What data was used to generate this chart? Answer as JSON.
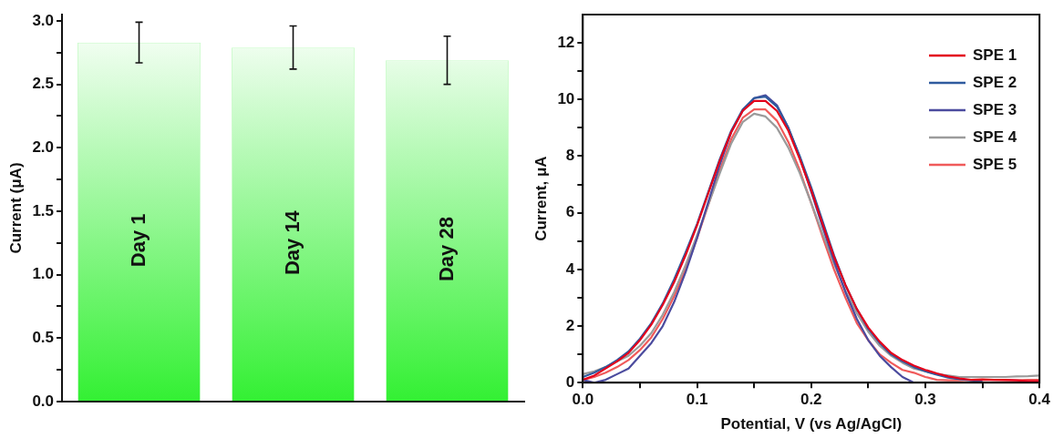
{
  "chart_data": [
    {
      "type": "bar",
      "ylabel": "Current (μA)",
      "categories": [
        "Day 1",
        "Day 14",
        "Day 28"
      ],
      "series": [
        {
          "color": "#33f033",
          "values": [
            2.83,
            2.79,
            2.69
          ],
          "errors": [
            0.16,
            0.17,
            0.19
          ]
        }
      ],
      "ylim": [
        0,
        3.05
      ],
      "yticks": [
        {
          "value": 0,
          "label": "0.0"
        },
        {
          "value": 0.25,
          "label": null
        },
        {
          "value": 0.5,
          "label": "0.5"
        },
        {
          "value": 0.75,
          "label": null
        },
        {
          "value": 1,
          "label": "1.0"
        },
        {
          "value": 1.25,
          "label": null
        },
        {
          "value": 1.5,
          "label": "1.5"
        },
        {
          "value": 1.75,
          "label": null
        },
        {
          "value": 2,
          "label": "2.0"
        },
        {
          "value": 2.25,
          "label": null
        },
        {
          "value": 2.5,
          "label": "2.5"
        },
        {
          "value": 2.75,
          "label": null
        },
        {
          "value": 3,
          "label": "3.0"
        }
      ],
      "grid": false,
      "legend": false
    },
    {
      "type": "line",
      "xlabel": "Potential, V (vs Ag/AgCl)",
      "ylabel": "Current, μA",
      "x": [
        0,
        0.01,
        0.02,
        0.03,
        0.04,
        0.05,
        0.06,
        0.07,
        0.08,
        0.09,
        0.1,
        0.11,
        0.12,
        0.13,
        0.14,
        0.15,
        0.16,
        0.17,
        0.18,
        0.19,
        0.2,
        0.21,
        0.22,
        0.23,
        0.24,
        0.25,
        0.26,
        0.27,
        0.28,
        0.29,
        0.3,
        0.31,
        0.32,
        0.33,
        0.34,
        0.35,
        0.36,
        0.37,
        0.38,
        0.39,
        0.4
      ],
      "series": [
        {
          "name": "SPE 1",
          "color": "#e3001b",
          "values": [
            0.1,
            0.25,
            0.5,
            0.75,
            1.05,
            1.5,
            2.05,
            2.75,
            3.55,
            4.5,
            5.55,
            6.7,
            7.85,
            8.85,
            9.6,
            9.95,
            9.95,
            9.6,
            8.9,
            7.9,
            6.8,
            5.6,
            4.45,
            3.45,
            2.6,
            1.95,
            1.45,
            1.05,
            0.8,
            0.6,
            0.45,
            0.33,
            0.22,
            0.15,
            0.1,
            0.1,
            0.1,
            0.1,
            0.08,
            0.05,
            0.05
          ]
        },
        {
          "name": "SPE 2",
          "color": "#2f5b9e",
          "values": [
            0.2,
            0.35,
            0.55,
            0.8,
            1.1,
            1.55,
            2.1,
            2.8,
            3.65,
            4.6,
            5.6,
            6.75,
            7.9,
            8.9,
            9.65,
            10.05,
            10.1,
            9.75,
            9.0,
            8.0,
            6.9,
            5.7,
            4.5,
            3.45,
            2.6,
            1.9,
            1.4,
            1.0,
            0.75,
            0.55,
            0.4,
            0.28,
            0.18,
            0.12,
            0.08,
            0.05,
            null,
            null,
            null,
            null,
            null
          ]
        },
        {
          "name": "SPE 3",
          "color": "#4b4b9e",
          "values": [
            0.1,
            0,
            0.1,
            0.3,
            0.5,
            0.95,
            1.4,
            2.0,
            2.85,
            3.9,
            5.1,
            6.4,
            7.7,
            8.85,
            9.6,
            10.05,
            10.15,
            9.8,
            9.0,
            7.95,
            6.75,
            5.5,
            4.3,
            3.2,
            2.25,
            1.5,
            0.95,
            0.55,
            0.2,
            0,
            null,
            null,
            null,
            null,
            null,
            null,
            null,
            null,
            null,
            null,
            null
          ]
        },
        {
          "name": "SPE 4",
          "color": "#9b9b9b",
          "values": [
            0.3,
            0.4,
            0.55,
            0.75,
            0.95,
            1.3,
            1.75,
            2.4,
            3.2,
            4.15,
            5.2,
            6.3,
            7.4,
            8.45,
            9.2,
            9.5,
            9.4,
            9.0,
            8.3,
            7.4,
            6.35,
            5.25,
            4.2,
            3.25,
            2.45,
            1.8,
            1.3,
            0.95,
            0.7,
            0.5,
            0.4,
            0.3,
            0.25,
            0.2,
            0.2,
            0.2,
            0.2,
            0.2,
            0.22,
            0.23,
            0.25
          ]
        },
        {
          "name": "SPE 5",
          "color": "#f05a5a",
          "values": [
            0.1,
            0.2,
            0.35,
            0.55,
            0.8,
            1.15,
            1.6,
            2.25,
            3.05,
            4.0,
            5.1,
            6.3,
            7.5,
            8.6,
            9.35,
            9.65,
            9.65,
            9.25,
            8.5,
            7.5,
            6.35,
            5.15,
            4.0,
            3.0,
            2.1,
            1.5,
            1.0,
            0.7,
            0.45,
            0.35,
            0.2,
            0.1,
            0.08,
            0.08,
            0.1,
            0.12,
            0.1,
            0.08,
            0.08,
            0.1,
            0.1
          ]
        }
      ],
      "xlim": [
        0,
        0.4
      ],
      "xticks": [
        {
          "value": 0,
          "label": "0.0"
        },
        {
          "value": 0.05,
          "label": null
        },
        {
          "value": 0.1,
          "label": "0.1"
        },
        {
          "value": 0.15,
          "label": null
        },
        {
          "value": 0.2,
          "label": "0.2"
        },
        {
          "value": 0.25,
          "label": null
        },
        {
          "value": 0.3,
          "label": "0.3"
        },
        {
          "value": 0.35,
          "label": null
        },
        {
          "value": 0.4,
          "label": "0.4"
        }
      ],
      "ylim": [
        0,
        13
      ],
      "yticks": [
        0,
        {
          "value": 1,
          "label": null
        },
        2,
        {
          "value": 3,
          "label": null
        },
        4,
        {
          "value": 5,
          "label": null
        },
        6,
        {
          "value": 7,
          "label": null
        },
        8,
        {
          "value": 9,
          "label": null
        },
        10,
        {
          "value": 11,
          "label": null
        },
        12
      ],
      "grid": false,
      "legend": "top right",
      "marker": "none",
      "line_style": "solid"
    }
  ]
}
